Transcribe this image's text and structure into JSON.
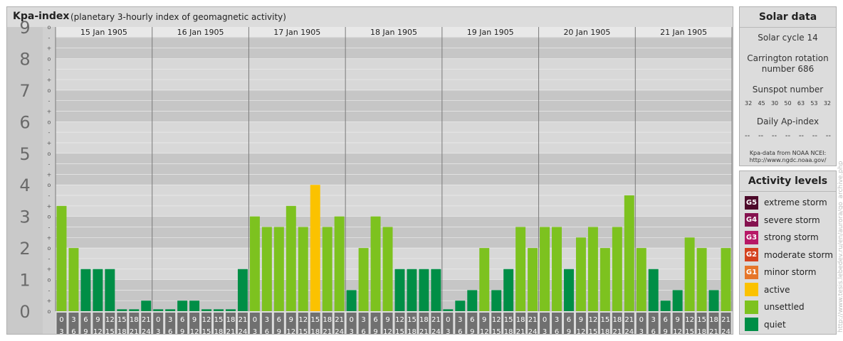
{
  "header": {
    "title": "Kpa-index",
    "subtitle": "(planetary 3-hourly index of geomagnetic activity)"
  },
  "chart_data": {
    "type": "bar",
    "ylim": [
      0,
      9
    ],
    "y_ticks": [
      "0",
      "1",
      "2",
      "3",
      "4",
      "5",
      "6",
      "7",
      "8",
      "9"
    ],
    "minor_tick_labels": [
      "o",
      "+",
      "-"
    ],
    "days": [
      "15 Jan 1905",
      "16 Jan 1905",
      "17 Jan 1905",
      "18 Jan 1905",
      "19 Jan 1905",
      "20 Jan 1905",
      "21 Jan 1905"
    ],
    "interval_start_labels": [
      "0",
      "3",
      "6",
      "9",
      "12",
      "15",
      "18",
      "21"
    ],
    "interval_end_labels": [
      "3",
      "6",
      "9",
      "12",
      "15",
      "18",
      "21",
      "24"
    ],
    "values": [
      [
        3.333,
        2,
        1.333,
        1.333,
        1.333,
        0,
        0,
        0.333
      ],
      [
        0,
        0,
        0.333,
        0.333,
        0,
        0,
        0,
        1.333
      ],
      [
        3,
        2.667,
        2.667,
        3.333,
        2.667,
        4,
        2.667,
        3
      ],
      [
        0.667,
        2,
        3,
        2.667,
        1.333,
        1.333,
        1.333,
        1.333
      ],
      [
        0,
        0.333,
        0.667,
        2,
        0.667,
        1.333,
        2.667,
        2
      ],
      [
        2.667,
        2.667,
        1.333,
        2.333,
        2.667,
        2,
        2.667,
        3.667
      ],
      [
        2,
        1.333,
        0.333,
        0.667,
        2.333,
        2,
        0.667,
        2
      ]
    ],
    "colors": {
      "quiet": "#008e46",
      "unsettled": "#7dc21f",
      "active": "#fbc200",
      "g1": "#e6762a",
      "g2": "#d4421f",
      "g3": "#b71967",
      "g4": "#85124f",
      "g5": "#4d0a2a"
    },
    "band_colors": [
      "#c6c6c6",
      "#d8d8d8"
    ],
    "grid": true
  },
  "solar": {
    "title": "Solar data",
    "cycle": "Solar cycle 14",
    "carrington_1": "Carrington rotation",
    "carrington_2": "number 686",
    "sunspot_title": "Sunspot number",
    "sunspots": [
      "32",
      "45",
      "30",
      "50",
      "63",
      "53",
      "32"
    ],
    "ap_title": "Daily Ap-index",
    "ap_values": [
      "--",
      "--",
      "--",
      "--",
      "--",
      "--",
      "--"
    ],
    "source_1": "Kpa-data from NOAA NCEI:",
    "source_2": "http://www.ngdc.noaa.gov/"
  },
  "legend": {
    "title": "Activity levels",
    "items": [
      {
        "code": "G5",
        "label": "extreme storm",
        "color": "#4d0a2a"
      },
      {
        "code": "G4",
        "label": "severe storm",
        "color": "#85124f"
      },
      {
        "code": "G3",
        "label": "strong storm",
        "color": "#b71967"
      },
      {
        "code": "G2",
        "label": "moderate storm",
        "color": "#d4421f"
      },
      {
        "code": "G1",
        "label": "minor storm",
        "color": "#e6762a"
      },
      {
        "code": "",
        "label": "active",
        "color": "#fbc200"
      },
      {
        "code": "",
        "label": "unsettled",
        "color": "#7dc21f"
      },
      {
        "code": "",
        "label": "quiet",
        "color": "#008e46"
      }
    ]
  },
  "watermark": "http://www.tesis.lebedev.ru/en/aurora/go_archive.php"
}
